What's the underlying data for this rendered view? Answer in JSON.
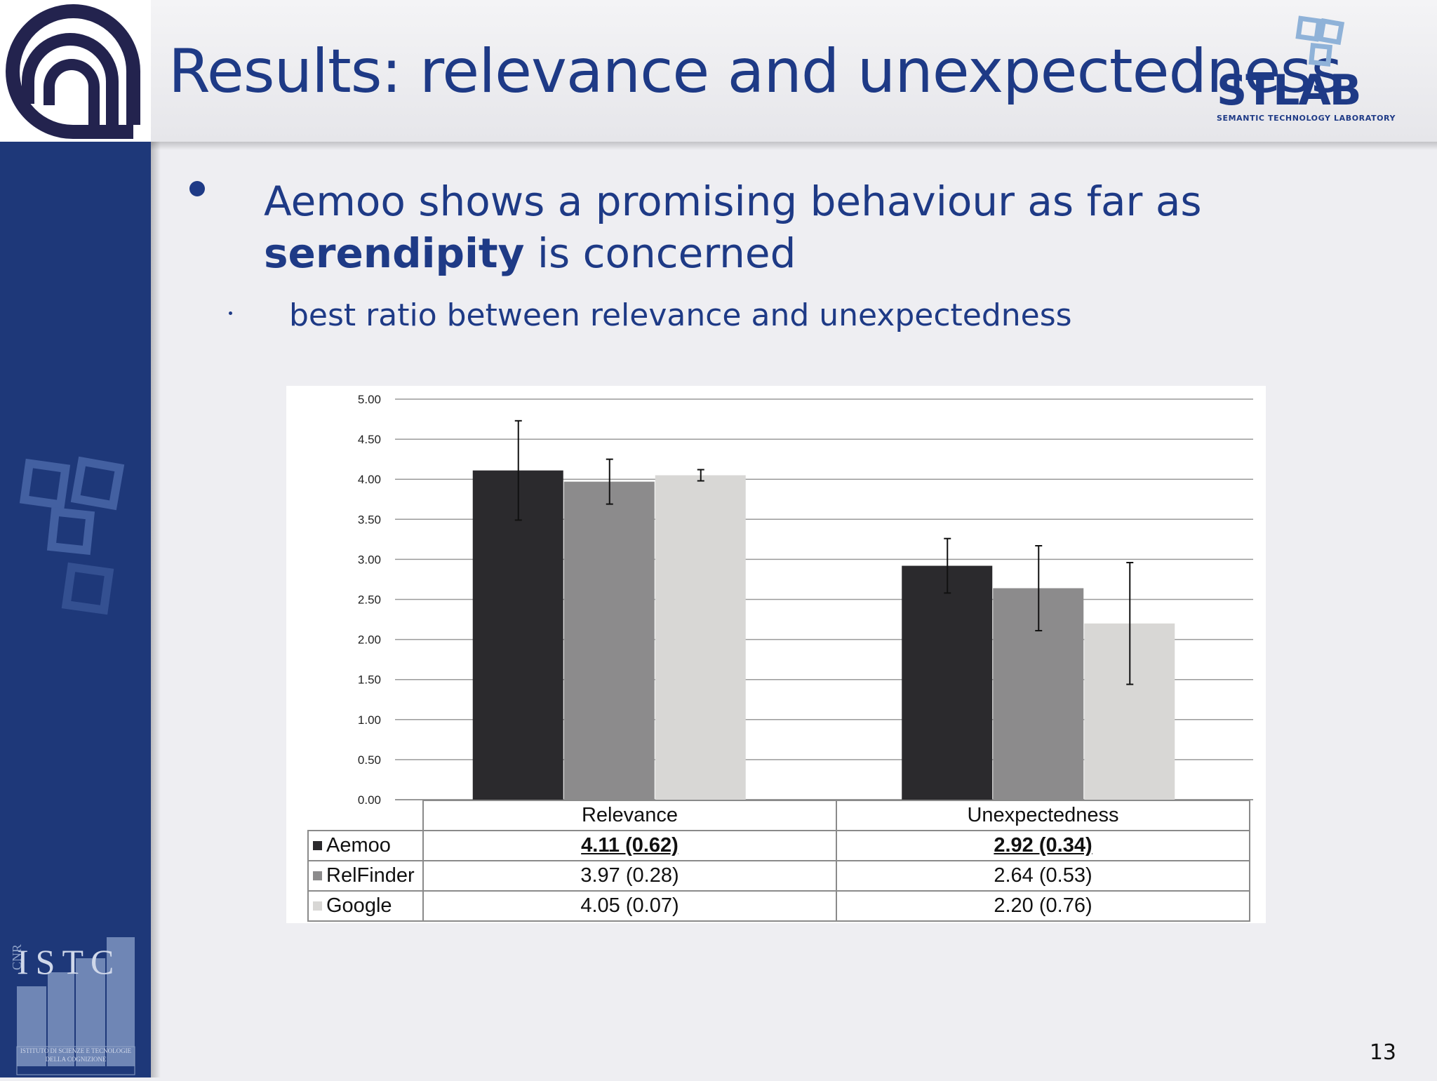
{
  "slide": {
    "title": "Results: relevance and unexpectedness",
    "bullet_main_pre": "Aemoo shows a promising behaviour as far as ",
    "bullet_main_bold": "serendipity",
    "bullet_main_post": " is concerned",
    "bullet_sub": "best ratio between relevance and unexpectedness",
    "page_number": "13"
  },
  "logos": {
    "left_top": "cnr-logo",
    "right_top_text": "STLAB",
    "right_top_subtitle": "SEMANTIC TECHNOLOGY LABORATORY",
    "left_bottom_letters": "ISTC",
    "left_bottom_vertical": "CNR",
    "left_bottom_caption_1": "ISTITUTO DI SCIENZE E TECNOLOGIE",
    "left_bottom_caption_2": "DELLA COGNIZIONE"
  },
  "colors": {
    "brand_blue": "#1e3a86",
    "sidebar": "#1e3879",
    "aemoo": "#2b2a2d",
    "relfinder": "#8c8b8c",
    "google": "#d8d7d5"
  },
  "chart_data": {
    "type": "bar",
    "categories": [
      "Relevance",
      "Unexpectedness"
    ],
    "ylim": [
      0,
      5
    ],
    "yticks": [
      "0.00",
      "0.50",
      "1.00",
      "1.50",
      "2.00",
      "2.50",
      "3.00",
      "3.50",
      "4.00",
      "4.50",
      "5.00"
    ],
    "grid": true,
    "legend": "data-table",
    "series": [
      {
        "name": "Aemoo",
        "values": [
          4.11,
          2.92
        ],
        "errors": [
          0.62,
          0.34
        ],
        "labels": [
          "4.11 (0.62)",
          "2.92 (0.34)"
        ],
        "color": "#2b2a2d",
        "best": true
      },
      {
        "name": "RelFinder",
        "values": [
          3.97,
          2.64
        ],
        "errors": [
          0.28,
          0.53
        ],
        "labels": [
          "3.97  (0.28)",
          "2.64  (0.53)"
        ],
        "color": "#8c8b8c",
        "best": false
      },
      {
        "name": "Google",
        "values": [
          4.05,
          2.2
        ],
        "errors": [
          0.07,
          0.76
        ],
        "labels": [
          "4.05  (0.07)",
          "2.20  (0.76)"
        ],
        "color": "#d8d7d5",
        "best": false
      }
    ]
  }
}
